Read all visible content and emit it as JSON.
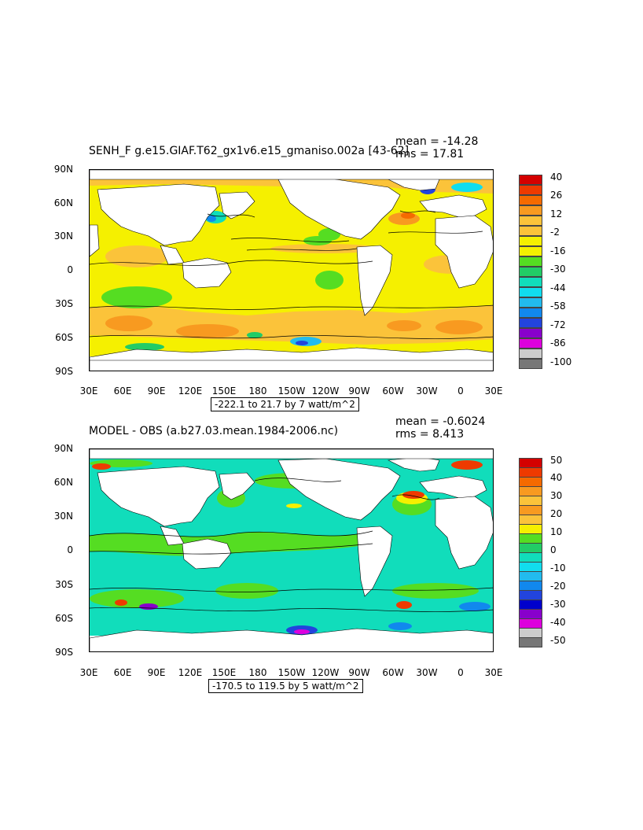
{
  "maps": [
    {
      "title": "SENH_F g.e15.GIAF.T62_gx1v6.e15_gmaniso.002a [43-62]",
      "mean_label": "mean = -14.28",
      "rms_label": "rms = 17.81",
      "range_label": "-222.1 to 21.7 by 7 watt/m^2",
      "lat_labels": [
        "90N",
        "60N",
        "30N",
        "0",
        "30S",
        "60S",
        "90S"
      ],
      "lon_labels": [
        "30E",
        "60E",
        "90E",
        "120E",
        "150E",
        "180",
        "150W",
        "120W",
        "90W",
        "60W",
        "30W",
        "0",
        "30E"
      ],
      "colorbar": {
        "labels": [
          "40",
          "26",
          "12",
          "-2",
          "-16",
          "-30",
          "-44",
          "-58",
          "-72",
          "-86",
          "-100"
        ],
        "colors": [
          "#d40000",
          "#ee3a00",
          "#f56a00",
          "#f89a20",
          "#fbc33a",
          "#f5f000",
          "#55dd22",
          "#22cc66",
          "#11ddbb",
          "#11ddee",
          "#22bbee",
          "#1188ee",
          "#2244dd",
          "#0000cc",
          "#8800cc",
          "#dd00dd",
          "#cccccc",
          "#777777"
        ]
      }
    },
    {
      "title": "MODEL - OBS (a.b27.03.mean.1984-2006.nc)",
      "mean_label": "mean = -0.6024",
      "rms_label": "rms = 8.413",
      "range_label": "-170.5 to 119.5 by 5 watt/m^2",
      "lat_labels": [
        "90N",
        "60N",
        "30N",
        "0",
        "30S",
        "60S",
        "90S"
      ],
      "lon_labels": [
        "30E",
        "60E",
        "90E",
        "120E",
        "150E",
        "180",
        "150W",
        "120W",
        "90W",
        "60W",
        "30W",
        "0",
        "30E"
      ],
      "colorbar": {
        "labels": [
          "50",
          "40",
          "30",
          "20",
          "10",
          "0",
          "-10",
          "-20",
          "-30",
          "-40",
          "-50"
        ],
        "colors": [
          "#d40000",
          "#ee3a00",
          "#f56a00",
          "#f89a20",
          "#fbc33a",
          "#f5f000",
          "#55dd22",
          "#22cc66",
          "#11ddbb",
          "#11ddee",
          "#22bbee",
          "#1188ee",
          "#2244dd",
          "#0000cc",
          "#8800cc",
          "#dd00dd",
          "#cccccc",
          "#777777"
        ]
      }
    }
  ]
}
